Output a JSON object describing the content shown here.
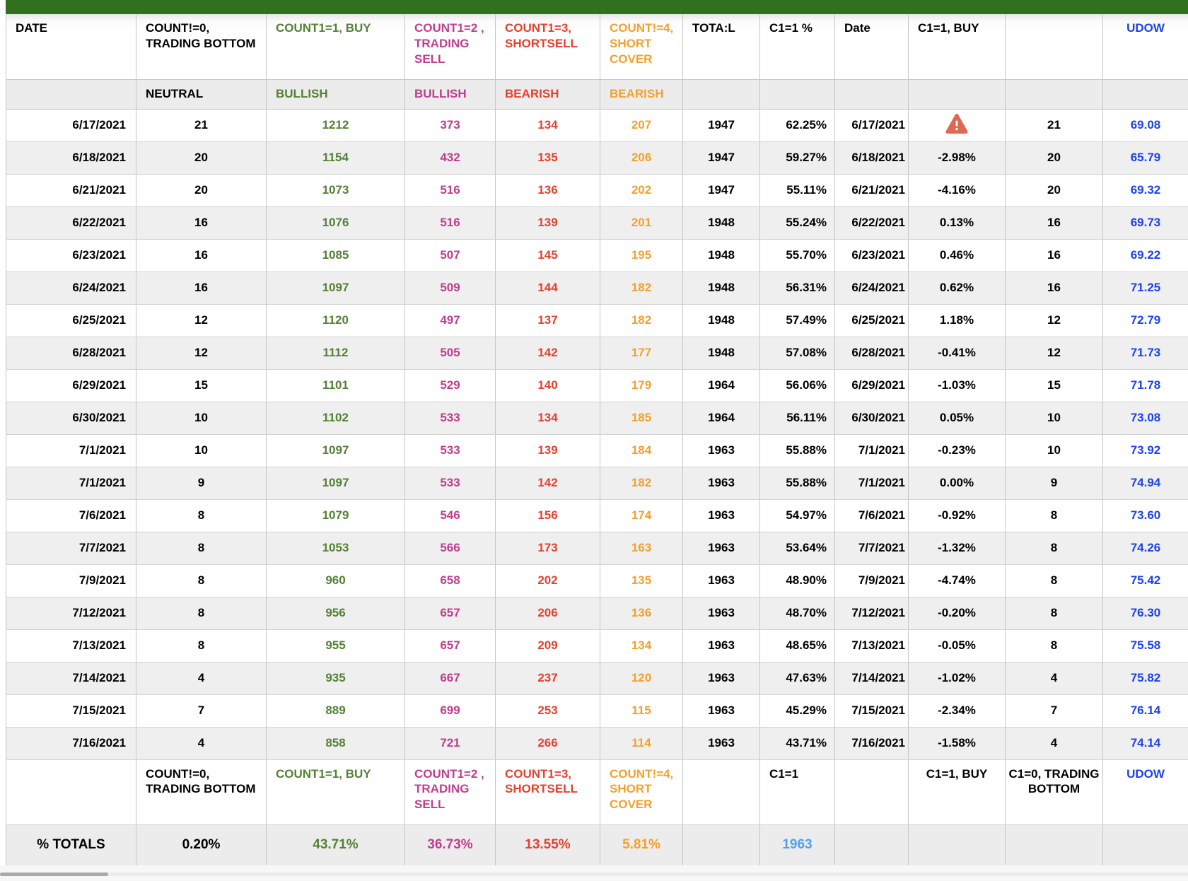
{
  "table": {
    "columns": [
      {
        "header": "DATE",
        "subheader": "",
        "color": "#000000"
      },
      {
        "header": "COUNT!=0, TRADING BOTTOM",
        "subheader": "NEUTRAL",
        "color": "#000000"
      },
      {
        "header": "COUNT1=1, BUY",
        "subheader": "BULLISH",
        "color": "#538135"
      },
      {
        "header": "COUNT1=2 , TRADING SELL",
        "subheader": "BULLISH",
        "color": "#c13d8d"
      },
      {
        "header": "COUNT1=3, SHORTSELL",
        "subheader": "BEARISH",
        "color": "#e6402d"
      },
      {
        "header": "COUNT!=4, SHORT COVER",
        "subheader": "BEARISH",
        "color": "#f5a02c"
      },
      {
        "header": "TOTA:L",
        "subheader": "",
        "color": "#000000"
      },
      {
        "header": "C1=1 %",
        "subheader": "",
        "color": "#000000"
      },
      {
        "header": "Date",
        "subheader": "",
        "color": "#000000"
      },
      {
        "header": "C1=1, BUY",
        "subheader": "",
        "color": "#000000"
      },
      {
        "header": "",
        "subheader": "",
        "color": "#000000"
      },
      {
        "header": "UDOW",
        "subheader": "",
        "color": "#1c41ee"
      }
    ],
    "rows": [
      {
        "cells": [
          "6/17/2021",
          "21",
          "1212",
          "373",
          "134",
          "207",
          "1947",
          "62.25%",
          "6/17/2021",
          "",
          "21",
          "69.08"
        ],
        "warning_icon": true
      },
      {
        "cells": [
          "6/18/2021",
          "20",
          "1154",
          "432",
          "135",
          "206",
          "1947",
          "59.27%",
          "6/18/2021",
          "-2.98%",
          "20",
          "65.79"
        ]
      },
      {
        "cells": [
          "6/21/2021",
          "20",
          "1073",
          "516",
          "136",
          "202",
          "1947",
          "55.11%",
          "6/21/2021",
          "-4.16%",
          "20",
          "69.32"
        ]
      },
      {
        "cells": [
          "6/22/2021",
          "16",
          "1076",
          "516",
          "139",
          "201",
          "1948",
          "55.24%",
          "6/22/2021",
          "0.13%",
          "16",
          "69.73"
        ]
      },
      {
        "cells": [
          "6/23/2021",
          "16",
          "1085",
          "507",
          "145",
          "195",
          "1948",
          "55.70%",
          "6/23/2021",
          "0.46%",
          "16",
          "69.22"
        ]
      },
      {
        "cells": [
          "6/24/2021",
          "16",
          "1097",
          "509",
          "144",
          "182",
          "1948",
          "56.31%",
          "6/24/2021",
          "0.62%",
          "16",
          "71.25"
        ]
      },
      {
        "cells": [
          "6/25/2021",
          "12",
          "1120",
          "497",
          "137",
          "182",
          "1948",
          "57.49%",
          "6/25/2021",
          "1.18%",
          "12",
          "72.79"
        ]
      },
      {
        "cells": [
          "6/28/2021",
          "12",
          "1112",
          "505",
          "142",
          "177",
          "1948",
          "57.08%",
          "6/28/2021",
          "-0.41%",
          "12",
          "71.73"
        ]
      },
      {
        "cells": [
          "6/29/2021",
          "15",
          "1101",
          "529",
          "140",
          "179",
          "1964",
          "56.06%",
          "6/29/2021",
          "-1.03%",
          "15",
          "71.78"
        ]
      },
      {
        "cells": [
          "6/30/2021",
          "10",
          "1102",
          "533",
          "134",
          "185",
          "1964",
          "56.11%",
          "6/30/2021",
          "0.05%",
          "10",
          "73.08"
        ]
      },
      {
        "cells": [
          "7/1/2021",
          "10",
          "1097",
          "533",
          "139",
          "184",
          "1963",
          "55.88%",
          "7/1/2021",
          "-0.23%",
          "10",
          "73.92"
        ]
      },
      {
        "cells": [
          "7/1/2021",
          "9",
          "1097",
          "533",
          "142",
          "182",
          "1963",
          "55.88%",
          "7/1/2021",
          "0.00%",
          "9",
          "74.94"
        ]
      },
      {
        "cells": [
          "7/6/2021",
          "8",
          "1079",
          "546",
          "156",
          "174",
          "1963",
          "54.97%",
          "7/6/2021",
          "-0.92%",
          "8",
          "73.60"
        ]
      },
      {
        "cells": [
          "7/7/2021",
          "8",
          "1053",
          "566",
          "173",
          "163",
          "1963",
          "53.64%",
          "7/7/2021",
          "-1.32%",
          "8",
          "74.26"
        ]
      },
      {
        "cells": [
          "7/9/2021",
          "8",
          "960",
          "658",
          "202",
          "135",
          "1963",
          "48.90%",
          "7/9/2021",
          "-4.74%",
          "8",
          "75.42"
        ]
      },
      {
        "cells": [
          "7/12/2021",
          "8",
          "956",
          "657",
          "206",
          "136",
          "1963",
          "48.70%",
          "7/12/2021",
          "-0.20%",
          "8",
          "76.30"
        ]
      },
      {
        "cells": [
          "7/13/2021",
          "8",
          "955",
          "657",
          "209",
          "134",
          "1963",
          "48.65%",
          "7/13/2021",
          "-0.05%",
          "8",
          "75.58"
        ]
      },
      {
        "cells": [
          "7/14/2021",
          "4",
          "935",
          "667",
          "237",
          "120",
          "1963",
          "47.63%",
          "7/14/2021",
          "-1.02%",
          "4",
          "75.82"
        ]
      },
      {
        "cells": [
          "7/15/2021",
          "7",
          "889",
          "699",
          "253",
          "115",
          "1963",
          "45.29%",
          "7/15/2021",
          "-2.34%",
          "7",
          "76.14"
        ]
      },
      {
        "cells": [
          "7/16/2021",
          "4",
          "858",
          "721",
          "266",
          "114",
          "1963",
          "43.71%",
          "7/16/2021",
          "-1.58%",
          "4",
          "74.14"
        ]
      }
    ],
    "footer_labels": [
      "",
      "COUNT!=0, TRADING BOTTOM",
      "COUNT1=1, BUY",
      "COUNT1=2 , TRADING SELL",
      "COUNT1=3, SHORTSELL",
      "COUNT!=4, SHORT COVER",
      "",
      "C1=1",
      "",
      "C1=1, BUY",
      "C1=0, TRADING BOTTOM",
      "UDOW"
    ],
    "totals": [
      "% TOTALS",
      "0.20%",
      "43.71%",
      "36.73%",
      "13.55%",
      "5.81%",
      "",
      "1963",
      "",
      "",
      "",
      ""
    ]
  },
  "icons": {
    "warning": "warning-icon"
  },
  "colors": {
    "top_bar_green": "#31701f",
    "bullish_green": "#538135",
    "bullish_magenta": "#c13d8d",
    "bearish_red": "#e6402d",
    "bearish_orange": "#f5a02c",
    "udow_blue": "#1c41ee",
    "totals_count_blue": "#4da1f2",
    "warning_icon_fill": "#dd6950"
  }
}
